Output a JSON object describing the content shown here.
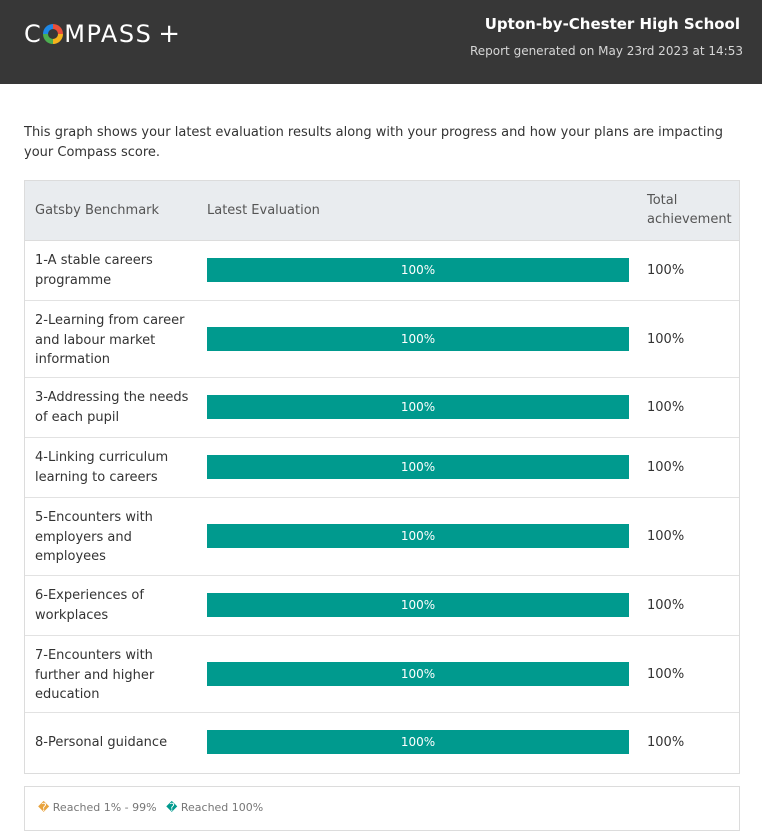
{
  "header": {
    "logo_text": "COMPASS+",
    "school_name": "Upton-by-Chester High School",
    "generated": "Report generated on May 23rd 2023 at 14:53"
  },
  "intro": "This graph shows your latest evaluation results along with your progress and how your plans are impacting your Compass score.",
  "table": {
    "columns": [
      "Gatsby Benchmark",
      "Latest Evaluation",
      "Total achievement"
    ]
  },
  "chart_data": {
    "type": "bar",
    "orientation": "horizontal",
    "categories": [
      "1-A stable careers programme",
      "2-Learning from career and labour market information",
      "3-Addressing the needs of each pupil",
      "4-Linking curriculum learning to careers",
      "5-Encounters with employers and employees",
      "6-Experiences of workplaces",
      "7-Encounters with further and higher education",
      "8-Personal guidance"
    ],
    "values": [
      100,
      100,
      100,
      100,
      100,
      100,
      100,
      100
    ],
    "bar_labels": [
      "100%",
      "100%",
      "100%",
      "100%",
      "100%",
      "100%",
      "100%",
      "100%"
    ],
    "totals": [
      "100%",
      "100%",
      "100%",
      "100%",
      "100%",
      "100%",
      "100%",
      "100%"
    ],
    "xlim": [
      0,
      100
    ],
    "colors": {
      "full": "#009a8e",
      "partial": "#e8a33d"
    },
    "legend": [
      {
        "symbol": "�",
        "label": "Reached 1% - 99%"
      },
      {
        "symbol": "�",
        "label": "Reached 100%"
      }
    ],
    "legend_position": "bottom"
  }
}
